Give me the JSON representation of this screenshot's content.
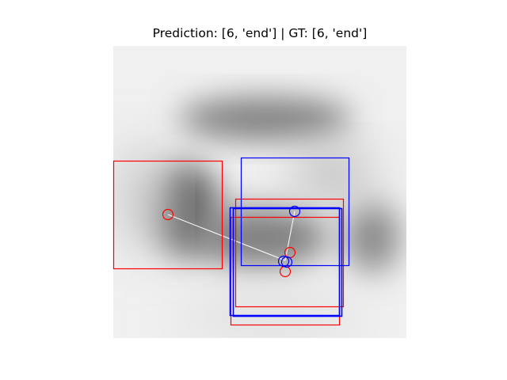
{
  "figure": {
    "title": "Prediction: [6, 'end'] | GT: [6, 'end']"
  },
  "colors": {
    "prediction": "#ff0000",
    "ground_truth": "#0000ff",
    "link": "#ffffff"
  }
}
